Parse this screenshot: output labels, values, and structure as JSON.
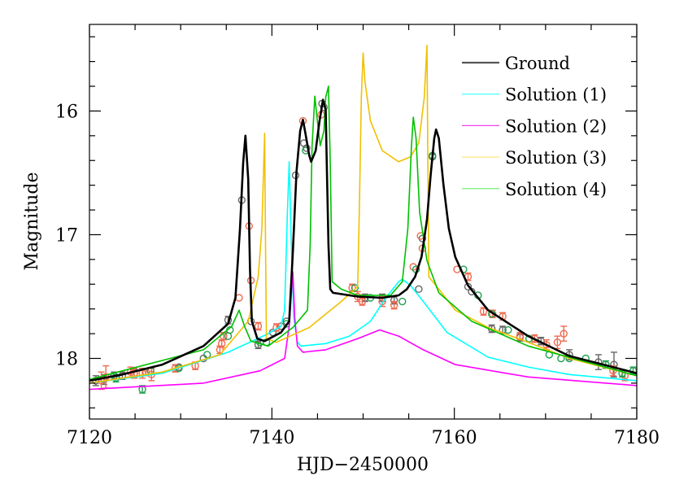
{
  "chart_data": {
    "type": "scatter",
    "title": "",
    "xlabel": "HJD−2450000",
    "ylabel": "Magnitude",
    "xlim": [
      7120,
      7180
    ],
    "ylim": [
      18.49,
      15.3
    ],
    "y_inverted": true,
    "grid": false,
    "legend_placement": "top-right",
    "x_ticks": [
      7120,
      7140,
      7160,
      7180
    ],
    "y_ticks": [
      16,
      17,
      18
    ],
    "x_minor_step": 5,
    "y_minor_step": 0.2,
    "legend": [
      {
        "label": "Ground",
        "color": "#555555"
      },
      {
        "label": "Solution (1)",
        "color": "#33ffff"
      },
      {
        "label": "Solution (2)",
        "color": "#ee44ee"
      },
      {
        "label": "Solution (3)",
        "color": "#ffe680"
      },
      {
        "label": "Solution (4)",
        "color": "#66ee66"
      }
    ],
    "curves": [
      {
        "name": "Ground",
        "color": "#000000",
        "points": [
          [
            7120,
            18.18
          ],
          [
            7123.6,
            18.13
          ],
          [
            7128,
            18.05
          ],
          [
            7132.5,
            17.9
          ],
          [
            7135.2,
            17.72
          ],
          [
            7136.0,
            17.51
          ],
          [
            7136.5,
            16.95
          ],
          [
            7136.85,
            16.42
          ],
          [
            7137.1,
            16.2
          ],
          [
            7137.4,
            16.55
          ],
          [
            7137.6,
            17.28
          ],
          [
            7137.8,
            17.7
          ],
          [
            7138.4,
            17.84
          ],
          [
            7139.2,
            17.86
          ],
          [
            7141,
            17.79
          ],
          [
            7141.9,
            17.7
          ],
          [
            7142.3,
            17.14
          ],
          [
            7142.7,
            16.49
          ],
          [
            7143.1,
            16.16
          ],
          [
            7143.4,
            16.07
          ],
          [
            7143.7,
            16.19
          ],
          [
            7144.1,
            16.36
          ],
          [
            7144.3,
            16.41
          ],
          [
            7144.8,
            16.32
          ],
          [
            7145.2,
            16.09
          ],
          [
            7145.6,
            15.91
          ],
          [
            7145.9,
            15.99
          ],
          [
            7146.0,
            16.36
          ],
          [
            7146.2,
            17.08
          ],
          [
            7146.4,
            17.44
          ],
          [
            7146.7,
            17.47
          ],
          [
            7149.4,
            17.5
          ],
          [
            7152.1,
            17.51
          ],
          [
            7153.9,
            17.49
          ],
          [
            7154.8,
            17.44
          ],
          [
            7155.7,
            17.34
          ],
          [
            7156.4,
            17.18
          ],
          [
            7157.0,
            16.88
          ],
          [
            7157.4,
            16.52
          ],
          [
            7157.8,
            16.22
          ],
          [
            7158.0,
            16.15
          ],
          [
            7158.3,
            16.22
          ],
          [
            7158.8,
            16.59
          ],
          [
            7159.4,
            16.95
          ],
          [
            7160.1,
            17.18
          ],
          [
            7161.5,
            17.41
          ],
          [
            7163.7,
            17.61
          ],
          [
            7168.1,
            17.82
          ],
          [
            7172.6,
            17.98
          ],
          [
            7180,
            18.12
          ]
        ]
      },
      {
        "name": "Solution (1)",
        "color": "#00ffff",
        "points": [
          [
            7120,
            18.2
          ],
          [
            7128,
            18.12
          ],
          [
            7135.2,
            17.95
          ],
          [
            7139.6,
            17.8
          ],
          [
            7141,
            17.74
          ],
          [
            7141.4,
            17.61
          ],
          [
            7141.7,
            16.82
          ],
          [
            7141.9,
            16.41
          ],
          [
            7142.1,
            17.01
          ],
          [
            7142.4,
            17.67
          ],
          [
            7142.8,
            17.87
          ],
          [
            7143.2,
            17.9
          ],
          [
            7145.9,
            17.88
          ],
          [
            7148.5,
            17.82
          ],
          [
            7150.8,
            17.7
          ],
          [
            7152.5,
            17.51
          ],
          [
            7153.9,
            17.38
          ],
          [
            7154.3,
            17.36
          ],
          [
            7155.2,
            17.41
          ],
          [
            7156.6,
            17.54
          ],
          [
            7159.2,
            17.79
          ],
          [
            7163.7,
            17.99
          ],
          [
            7168.1,
            18.07
          ],
          [
            7172.6,
            18.13
          ],
          [
            7180,
            18.18
          ]
        ]
      },
      {
        "name": "Solution (2)",
        "color": "#ff00ff",
        "points": [
          [
            7120,
            18.25
          ],
          [
            7132.5,
            18.2
          ],
          [
            7138.7,
            18.1
          ],
          [
            7141.4,
            18.0
          ],
          [
            7141.9,
            17.74
          ],
          [
            7142.3,
            17.3
          ],
          [
            7142.5,
            17.67
          ],
          [
            7142.8,
            17.9
          ],
          [
            7143.4,
            17.95
          ],
          [
            7145.9,
            17.93
          ],
          [
            7149.4,
            17.84
          ],
          [
            7151.8,
            17.77
          ],
          [
            7153.9,
            17.82
          ],
          [
            7156.6,
            17.93
          ],
          [
            7160.1,
            18.05
          ],
          [
            7168.1,
            18.15
          ],
          [
            7180,
            18.22
          ]
        ]
      },
      {
        "name": "Solution (3)",
        "color": "#f0c000",
        "points": [
          [
            7120,
            18.2
          ],
          [
            7128,
            18.11
          ],
          [
            7134.3,
            17.97
          ],
          [
            7137.4,
            17.7
          ],
          [
            7138.5,
            17.34
          ],
          [
            7138.9,
            16.95
          ],
          [
            7139.2,
            16.18
          ],
          [
            7139.3,
            17.08
          ],
          [
            7139.4,
            17.84
          ],
          [
            7140.5,
            17.87
          ],
          [
            7144.1,
            17.75
          ],
          [
            7147.6,
            17.54
          ],
          [
            7149.4,
            17.42
          ],
          [
            7149.6,
            16.75
          ],
          [
            7149.8,
            15.89
          ],
          [
            7150.0,
            15.53
          ],
          [
            7150.2,
            15.76
          ],
          [
            7150.8,
            16.08
          ],
          [
            7152.1,
            16.32
          ],
          [
            7153.9,
            16.41
          ],
          [
            7155.2,
            16.37
          ],
          [
            7156.1,
            16.26
          ],
          [
            7156.7,
            15.89
          ],
          [
            7157.0,
            15.47
          ],
          [
            7157.1,
            16.42
          ],
          [
            7157.2,
            17.34
          ],
          [
            7158.3,
            17.44
          ],
          [
            7160.1,
            17.61
          ],
          [
            7163.7,
            17.75
          ],
          [
            7168.1,
            17.87
          ],
          [
            7172.6,
            18.0
          ],
          [
            7180,
            18.14
          ]
        ]
      },
      {
        "name": "Solution (4)",
        "color": "#00c000",
        "points": [
          [
            7120,
            18.17
          ],
          [
            7132.5,
            17.93
          ],
          [
            7135.6,
            17.74
          ],
          [
            7136.4,
            17.61
          ],
          [
            7137,
            17.74
          ],
          [
            7137.7,
            17.86
          ],
          [
            7139.6,
            17.9
          ],
          [
            7142.3,
            17.75
          ],
          [
            7143.9,
            17.61
          ],
          [
            7144.2,
            17.08
          ],
          [
            7144.4,
            16.29
          ],
          [
            7144.7,
            15.88
          ],
          [
            7145,
            16.09
          ],
          [
            7145.3,
            16.28
          ],
          [
            7145.7,
            16.16
          ],
          [
            7145.9,
            15.89
          ],
          [
            7146.2,
            15.8
          ],
          [
            7146.4,
            16.42
          ],
          [
            7146.6,
            17.38
          ],
          [
            7147.6,
            17.44
          ],
          [
            7149.4,
            17.49
          ],
          [
            7153,
            17.49
          ],
          [
            7154.3,
            17.38
          ],
          [
            7154.9,
            16.95
          ],
          [
            7155.3,
            16.29
          ],
          [
            7155.5,
            16.05
          ],
          [
            7155.8,
            16.22
          ],
          [
            7156.2,
            16.82
          ],
          [
            7157,
            17.21
          ],
          [
            7158.3,
            17.47
          ],
          [
            7161.9,
            17.7
          ],
          [
            7168.1,
            17.9
          ],
          [
            7180,
            18.14
          ]
        ]
      }
    ],
    "data_sets": [
      {
        "color": "#666666",
        "points": [
          [
            7120.7,
            18.18,
            0.04
          ],
          [
            7121.6,
            18.17,
            0.04
          ],
          [
            7122.7,
            18.14,
            0.03
          ],
          [
            7123.6,
            18.14,
            0.03
          ],
          [
            7124.9,
            18.12,
            0.03
          ],
          [
            7129.8,
            18.07,
            0.02
          ],
          [
            7132.5,
            18.0,
            0.02
          ],
          [
            7135.2,
            17.69,
            0.03
          ],
          [
            7136.7,
            16.72,
            0.02
          ],
          [
            7137.7,
            17.7,
            0.02
          ],
          [
            7138.5,
            17.89,
            0.03
          ],
          [
            7140.1,
            17.79,
            0.02
          ],
          [
            7141.0,
            17.74,
            0.02
          ],
          [
            7141.6,
            17.7,
            0.02
          ],
          [
            7142.6,
            16.52,
            0.02
          ],
          [
            7143.5,
            16.26,
            0.02
          ],
          [
            7143.8,
            16.3,
            0.02
          ],
          [
            7145.5,
            15.94,
            0.02
          ],
          [
            7145.7,
            15.97,
            0.02
          ],
          [
            7150.2,
            17.51,
            0.03
          ],
          [
            7152.1,
            17.51,
            0.03
          ],
          [
            7153.4,
            17.53,
            0.03
          ],
          [
            7156.1,
            17.44,
            0.02
          ],
          [
            7156.5,
            17.03,
            0.02
          ],
          [
            7157.6,
            16.37,
            0.02
          ],
          [
            7161.5,
            17.42,
            0.02
          ],
          [
            7161.9,
            17.46,
            0.02
          ],
          [
            7164.1,
            17.76,
            0.03
          ],
          [
            7165.3,
            17.77,
            0.03
          ],
          [
            7167.2,
            17.83,
            0.03
          ],
          [
            7169.5,
            17.86,
            0.03
          ],
          [
            7172.6,
            17.97,
            0.04
          ],
          [
            7175.8,
            18.03,
            0.06
          ],
          [
            7177.5,
            18.05,
            0.1
          ]
        ]
      },
      {
        "color": "#f06a50",
        "points": [
          [
            7121.3,
            18.18,
            0.07
          ],
          [
            7121.8,
            18.15,
            0.09
          ],
          [
            7124.5,
            18.11,
            0.04
          ],
          [
            7124.9,
            18.12,
            0.04
          ],
          [
            7125.8,
            18.12,
            0.04
          ],
          [
            7126.2,
            18.11,
            0.03
          ],
          [
            7126.8,
            18.13,
            0.05
          ],
          [
            7129.4,
            18.08,
            0.03
          ],
          [
            7131.6,
            18.06,
            0.03
          ],
          [
            7134.3,
            17.93,
            0.03
          ],
          [
            7134.7,
            17.82,
            0.03
          ],
          [
            7134.5,
            17.88,
            0.03
          ],
          [
            7136.4,
            17.51,
            0.02
          ],
          [
            7137.5,
            16.93,
            0.02
          ],
          [
            7137.7,
            17.37,
            0.02
          ],
          [
            7138.5,
            17.74,
            0.03
          ],
          [
            7140.5,
            17.75,
            0.03
          ],
          [
            7143.4,
            16.08,
            0.02
          ],
          [
            7145.4,
            16.03,
            0.02
          ],
          [
            7148.8,
            17.43,
            0.03
          ],
          [
            7149.4,
            17.5,
            0.04
          ],
          [
            7149.9,
            17.54,
            0.03
          ],
          [
            7152.1,
            17.54,
            0.04
          ],
          [
            7153.4,
            17.57,
            0.03
          ],
          [
            7155.5,
            17.26,
            0.02
          ],
          [
            7156.3,
            17.01,
            0.02
          ],
          [
            7156.5,
            17.11,
            0.02
          ],
          [
            7160.3,
            17.28,
            0.02
          ],
          [
            7161.5,
            17.34,
            0.03
          ],
          [
            7163.2,
            17.62,
            0.03
          ],
          [
            7164.2,
            17.64,
            0.03
          ],
          [
            7165.3,
            17.66,
            0.03
          ],
          [
            7167.2,
            17.82,
            0.03
          ],
          [
            7168.8,
            17.84,
            0.03
          ],
          [
            7170.1,
            17.89,
            0.04
          ],
          [
            7171.3,
            17.87,
            0.05
          ],
          [
            7172.0,
            17.8,
            0.06
          ],
          [
            7177.4,
            18.1,
            0.04
          ],
          [
            7178.7,
            18.14,
            0.04
          ]
        ]
      },
      {
        "color": "#20a050",
        "points": [
          [
            7122.9,
            18.16,
            0.03
          ],
          [
            7125.8,
            18.25,
            0.03
          ],
          [
            7126.7,
            18.1,
            0.02
          ],
          [
            7129.8,
            18.08,
            0.02
          ],
          [
            7132.9,
            17.97,
            0.02
          ],
          [
            7135.2,
            17.82,
            0.02
          ],
          [
            7135.4,
            17.77,
            0.02
          ],
          [
            7138.7,
            17.87,
            0.02
          ],
          [
            7139.4,
            17.87,
            0.02
          ],
          [
            7141.6,
            17.72,
            0.02
          ],
          [
            7143.7,
            16.32,
            0.02
          ],
          [
            7149.1,
            17.43,
            0.02
          ],
          [
            7150.8,
            17.51,
            0.02
          ],
          [
            7154.3,
            17.54,
            0.02
          ],
          [
            7155.8,
            17.28,
            0.02
          ],
          [
            7157.6,
            16.36,
            0.02
          ],
          [
            7161.0,
            17.28,
            0.02
          ],
          [
            7162.6,
            17.49,
            0.02
          ],
          [
            7164.1,
            17.64,
            0.02
          ],
          [
            7165.9,
            17.77,
            0.02
          ],
          [
            7168.2,
            17.84,
            0.02
          ],
          [
            7170.4,
            17.97,
            0.02
          ],
          [
            7171.7,
            18.0,
            0.02
          ],
          [
            7172.6,
            18.0,
            0.02
          ],
          [
            7174.4,
            18.0,
            0.02
          ],
          [
            7176.6,
            18.05,
            0.03
          ],
          [
            7178.4,
            18.12,
            0.03
          ],
          [
            7179.6,
            18.1,
            0.03
          ]
        ]
      }
    ]
  }
}
